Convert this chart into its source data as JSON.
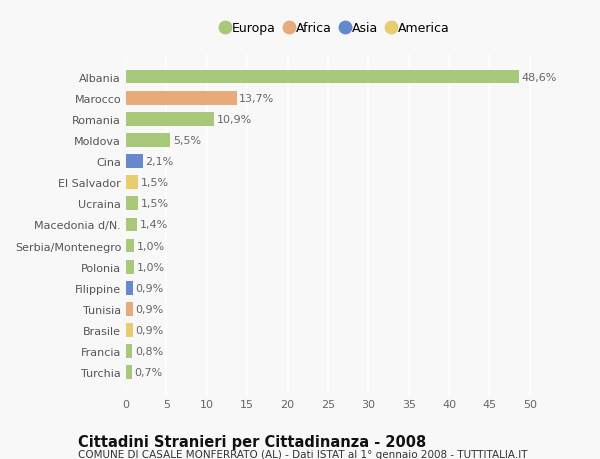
{
  "categories": [
    "Albania",
    "Marocco",
    "Romania",
    "Moldova",
    "Cina",
    "El Salvador",
    "Ucraina",
    "Macedonia d/N.",
    "Serbia/Montenegro",
    "Polonia",
    "Filippine",
    "Tunisia",
    "Brasile",
    "Francia",
    "Turchia"
  ],
  "values": [
    48.6,
    13.7,
    10.9,
    5.5,
    2.1,
    1.5,
    1.5,
    1.4,
    1.0,
    1.0,
    0.9,
    0.9,
    0.9,
    0.8,
    0.7
  ],
  "labels": [
    "48,6%",
    "13,7%",
    "10,9%",
    "5,5%",
    "2,1%",
    "1,5%",
    "1,5%",
    "1,4%",
    "1,0%",
    "1,0%",
    "0,9%",
    "0,9%",
    "0,9%",
    "0,8%",
    "0,7%"
  ],
  "continent": [
    "Europa",
    "Africa",
    "Europa",
    "Europa",
    "Asia",
    "America",
    "Europa",
    "Europa",
    "Europa",
    "Europa",
    "Asia",
    "Africa",
    "America",
    "Europa",
    "Europa"
  ],
  "continent_colors": {
    "Europa": "#a8c87a",
    "Africa": "#e8aa78",
    "Asia": "#6688cc",
    "America": "#e8cc70"
  },
  "legend_items": [
    "Europa",
    "Africa",
    "Asia",
    "America"
  ],
  "legend_colors": [
    "#a8c87a",
    "#e8aa78",
    "#6688cc",
    "#e8cc70"
  ],
  "title": "Cittadini Stranieri per Cittadinanza - 2008",
  "subtitle": "COMUNE DI CASALE MONFERRATO (AL) - Dati ISTAT al 1° gennaio 2008 - TUTTITALIA.IT",
  "xlim": [
    0,
    52
  ],
  "xticks": [
    0,
    5,
    10,
    15,
    20,
    25,
    30,
    35,
    40,
    45,
    50
  ],
  "background_color": "#f8f8f8",
  "bar_height": 0.65,
  "grid_color": "#ffffff",
  "title_fontsize": 10.5,
  "subtitle_fontsize": 7.5,
  "tick_fontsize": 8,
  "label_fontsize": 8,
  "ytick_fontsize": 8
}
